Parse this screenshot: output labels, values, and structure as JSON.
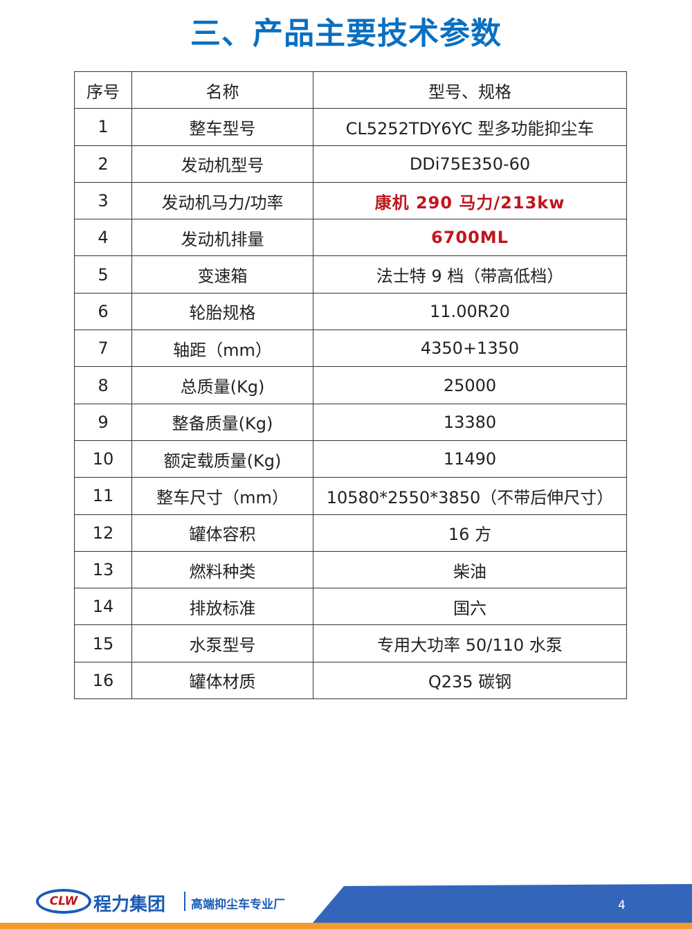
{
  "title": "三、产品主要技术参数",
  "table": {
    "headers": [
      "序号",
      "名称",
      "型号、规格"
    ],
    "rows": [
      {
        "no": "1",
        "name": "整车型号",
        "spec": "CL5252TDY6YC 型多功能抑尘车",
        "highlight": false
      },
      {
        "no": "2",
        "name": "发动机型号",
        "spec": "DDi75E350-60",
        "highlight": false
      },
      {
        "no": "3",
        "name": "发动机马力/功率",
        "spec": "康机 290 马力/213kw",
        "highlight": true
      },
      {
        "no": "4",
        "name": "发动机排量",
        "spec": "6700ML",
        "highlight": true
      },
      {
        "no": "5",
        "name": "变速箱",
        "spec": "法士特 9 档（带高低档）",
        "highlight": false
      },
      {
        "no": "6",
        "name": "轮胎规格",
        "spec": "11.00R20",
        "highlight": false
      },
      {
        "no": "7",
        "name": "轴距（mm）",
        "spec": "4350+1350",
        "highlight": false
      },
      {
        "no": "8",
        "name": "总质量(Kg)",
        "spec": "25000",
        "highlight": false
      },
      {
        "no": "9",
        "name": "整备质量(Kg)",
        "spec": "13380",
        "highlight": false
      },
      {
        "no": "10",
        "name": "额定载质量(Kg)",
        "spec": "11490",
        "highlight": false
      },
      {
        "no": "11",
        "name": "整车尺寸（mm）",
        "spec": "10580*2550*3850（不带后伸尺寸）",
        "highlight": false
      },
      {
        "no": "12",
        "name": "罐体容积",
        "spec": "16 方",
        "highlight": false
      },
      {
        "no": "13",
        "name": "燃料种类",
        "spec": "柴油",
        "highlight": false
      },
      {
        "no": "14",
        "name": "排放标准",
        "spec": "国六",
        "highlight": false
      },
      {
        "no": "15",
        "name": "水泵型号",
        "spec": "专用大功率 50/110 水泵",
        "highlight": false
      },
      {
        "no": "16",
        "name": "罐体材质",
        "spec": "Q235 碳钢",
        "highlight": false
      }
    ]
  },
  "footer": {
    "logo_text": "CLW",
    "brand": "程力集团",
    "slogan": "高端抑尘车专业厂",
    "page_number": "4"
  },
  "colors": {
    "title": "#0a6fc0",
    "highlight": "#c0161c",
    "footer_blue": "#3366bb",
    "footer_orange": "#f39a2f"
  }
}
